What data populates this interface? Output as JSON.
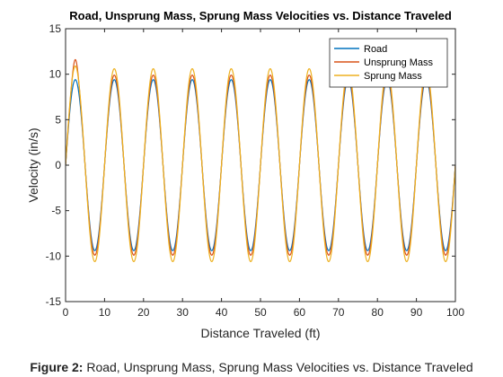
{
  "chart_data": {
    "type": "line",
    "title": "Road, Unsprung Mass, Sprung Mass Velocities vs. Distance Traveled",
    "xlabel": "Distance Traveled (ft)",
    "ylabel": "Velocity (in/s)",
    "xlim": [
      0,
      100
    ],
    "ylim": [
      -15,
      15
    ],
    "xticks": [
      "0",
      "10",
      "20",
      "30",
      "40",
      "50",
      "60",
      "70",
      "80",
      "90",
      "100"
    ],
    "yticks": [
      "15",
      "10",
      "5",
      "0",
      "-5",
      "-10",
      "-15"
    ],
    "grid": false,
    "legend_position": "top-right",
    "series": [
      {
        "name": "Road",
        "color": "#0072BD",
        "amplitude": 9.4,
        "period": 10,
        "start_value": 0
      },
      {
        "name": "Unsprung Mass",
        "color": "#D95319",
        "amplitude": 9.9,
        "period": 10,
        "start_value": 0,
        "initial_peak": 11.6
      },
      {
        "name": "Sprung Mass",
        "color": "#EDB120",
        "amplitude": 10.6,
        "period": 10,
        "start_value": 0,
        "initial_peak": 10.9
      }
    ]
  },
  "caption": {
    "prefix": "Figure 2:",
    "text": " Road, Unsprung Mass, Sprung Mass Velocities vs. Distance Traveled"
  }
}
